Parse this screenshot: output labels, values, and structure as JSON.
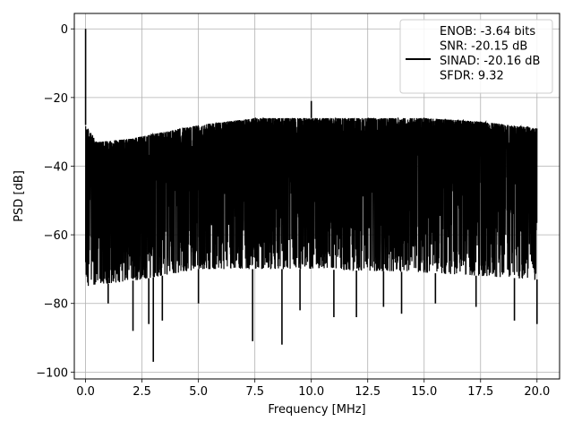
{
  "chart_data": {
    "type": "line",
    "title": "",
    "xlabel": "Frequency [MHz]",
    "ylabel": "PSD [dB]",
    "xlim": [
      -0.5,
      21.0
    ],
    "ylim": [
      -102,
      4.5
    ],
    "xticks": [
      0.0,
      2.5,
      5.0,
      7.5,
      10.0,
      12.5,
      15.0,
      17.5,
      20.0
    ],
    "xtick_labels": [
      "0.0",
      "2.5",
      "5.0",
      "7.5",
      "10.0",
      "12.5",
      "15.0",
      "17.5",
      "20.0"
    ],
    "yticks": [
      0,
      -20,
      -40,
      -60,
      -80,
      -100
    ],
    "ytick_labels": [
      "0",
      "−20",
      "−40",
      "−60",
      "−80",
      "−100"
    ],
    "grid": true,
    "legend_position": "top-right",
    "series": [
      {
        "color": "#000000",
        "x_range": [
          0.0,
          20.0
        ],
        "peaks": [
          {
            "x": 0.0,
            "y": 0.0
          },
          {
            "x": 10.0,
            "y": -21
          }
        ],
        "noise_ceiling": [
          {
            "x": 0.0,
            "y": -28
          },
          {
            "x": 0.5,
            "y": -33
          },
          {
            "x": 2.0,
            "y": -32
          },
          {
            "x": 5.0,
            "y": -28
          },
          {
            "x": 7.5,
            "y": -26
          },
          {
            "x": 10.0,
            "y": -26
          },
          {
            "x": 12.5,
            "y": -26
          },
          {
            "x": 15.0,
            "y": -26
          },
          {
            "x": 17.5,
            "y": -27
          },
          {
            "x": 20.0,
            "y": -29
          }
        ],
        "noise_floor": [
          {
            "x": 0.0,
            "y": -75
          },
          {
            "x": 2.5,
            "y": -73
          },
          {
            "x": 5.0,
            "y": -70
          },
          {
            "x": 10.0,
            "y": -70
          },
          {
            "x": 15.0,
            "y": -71
          },
          {
            "x": 20.0,
            "y": -73
          }
        ],
        "dips": [
          {
            "x": 1.0,
            "y": -80
          },
          {
            "x": 2.1,
            "y": -88
          },
          {
            "x": 2.8,
            "y": -86
          },
          {
            "x": 3.0,
            "y": -97
          },
          {
            "x": 3.4,
            "y": -85
          },
          {
            "x": 5.0,
            "y": -80
          },
          {
            "x": 7.4,
            "y": -91
          },
          {
            "x": 8.7,
            "y": -92
          },
          {
            "x": 9.5,
            "y": -82
          },
          {
            "x": 11.0,
            "y": -84
          },
          {
            "x": 12.0,
            "y": -84
          },
          {
            "x": 13.2,
            "y": -81
          },
          {
            "x": 14.0,
            "y": -83
          },
          {
            "x": 15.5,
            "y": -80
          },
          {
            "x": 17.3,
            "y": -81
          },
          {
            "x": 19.0,
            "y": -85
          },
          {
            "x": 20.0,
            "y": -86
          }
        ]
      }
    ],
    "legend": {
      "lines": [
        "ENOB: -3.64 bits",
        "SNR: -20.15 dB",
        "SINAD: -20.16 dB",
        "SFDR: 9.32"
      ]
    }
  }
}
